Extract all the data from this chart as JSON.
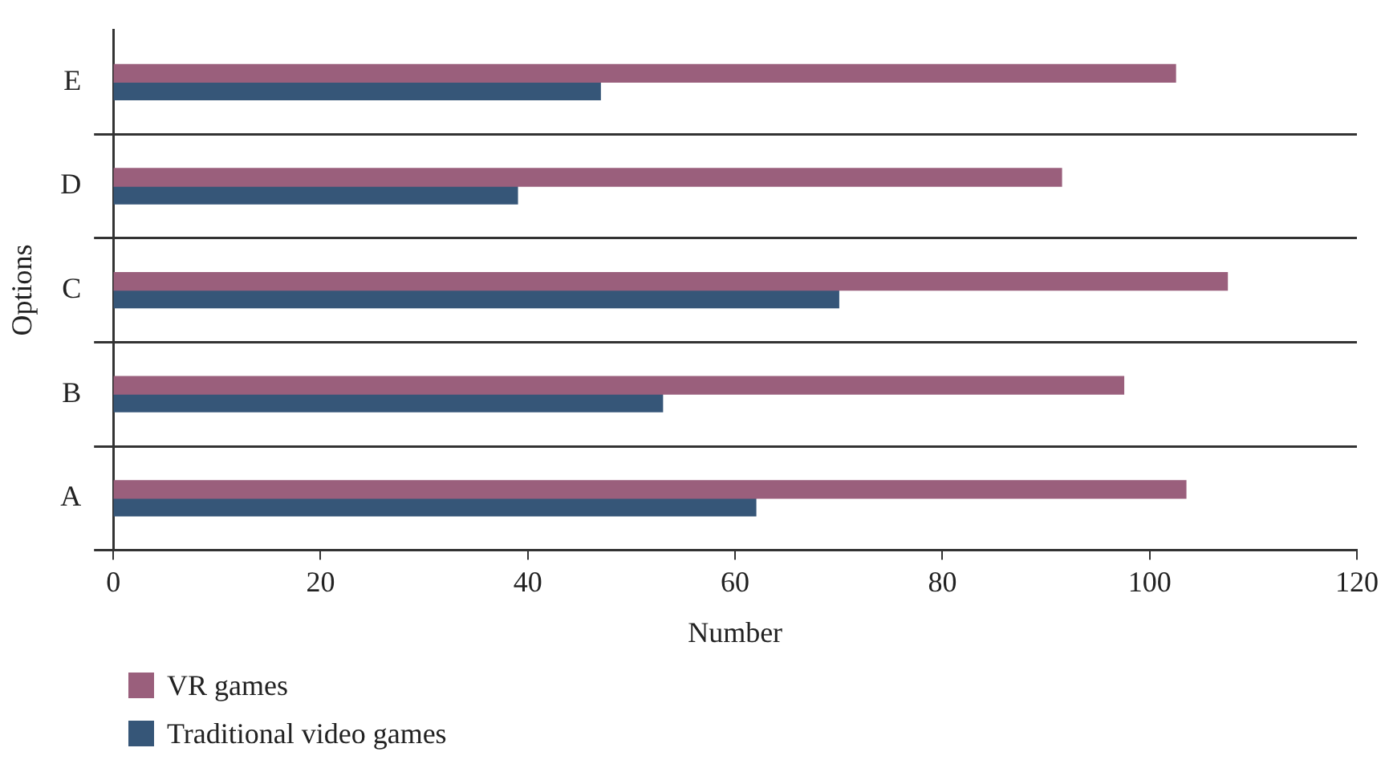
{
  "chart_data": {
    "type": "bar",
    "orientation": "horizontal",
    "xlabel": "Number",
    "ylabel": "Options",
    "categories": [
      "E",
      "D",
      "C",
      "B",
      "A"
    ],
    "series": [
      {
        "name": "VR games",
        "color": "#9a5f7c",
        "values": [
          102.5,
          91.5,
          107.5,
          97.5,
          103.5
        ]
      },
      {
        "name": "Traditional video games",
        "color": "#365678",
        "values": [
          47,
          39,
          70,
          53,
          62
        ]
      }
    ],
    "xlim": [
      0,
      120
    ],
    "xticks": [
      0,
      20,
      40,
      60,
      80,
      100,
      120
    ],
    "grid": "y",
    "legend": "bottom left"
  }
}
